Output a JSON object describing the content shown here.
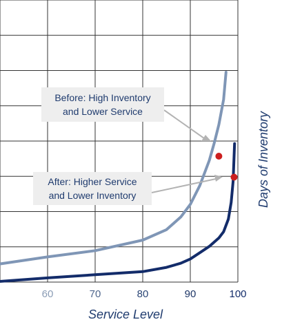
{
  "chart_data": {
    "type": "line",
    "xlabel": "Service Level",
    "ylabel": "Days of Inventory",
    "x_ticks": [
      "60",
      "70",
      "80",
      "90",
      "100"
    ],
    "grid": true,
    "series": [
      {
        "color": "#7f96b6",
        "x": [
          48,
          60,
          70,
          80,
          85,
          88,
          90,
          92,
          94,
          95,
          96,
          97,
          97.5
        ],
        "y": [
          0.08,
          0.12,
          0.15,
          0.2,
          0.25,
          0.31,
          0.37,
          0.46,
          0.58,
          0.66,
          0.75,
          0.87,
          1.0
        ]
      },
      {
        "color": "#132c6a",
        "x": [
          48,
          60,
          70,
          80,
          85,
          88,
          90,
          92,
          94,
          96,
          97,
          98,
          98.6,
          99,
          99.3
        ],
        "y": [
          0.0,
          0.02,
          0.035,
          0.05,
          0.07,
          0.09,
          0.11,
          0.14,
          0.17,
          0.21,
          0.24,
          0.3,
          0.38,
          0.48,
          0.66
        ]
      }
    ],
    "points": [
      {
        "x": 96,
        "y": 0.6,
        "color": "#cc1f1f"
      },
      {
        "x": 99.2,
        "y": 0.5,
        "color": "#cc1f1f"
      }
    ],
    "annotations": [
      {
        "lines": [
          "Before: High Inventory",
          "and Lower Service"
        ]
      },
      {
        "lines": [
          "After: Higher Service",
          "and Lower Inventory"
        ]
      }
    ]
  }
}
